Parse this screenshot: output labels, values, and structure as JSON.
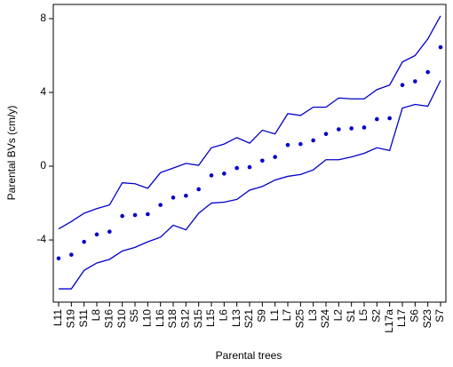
{
  "chart_data": {
    "type": "line",
    "x_label": "Parental trees",
    "y_label": "Parental BVs (cm/y)",
    "categories": [
      "L11",
      "S19",
      "S11",
      "L8",
      "S16",
      "S10",
      "S5",
      "L10",
      "L16",
      "S18",
      "S12",
      "S15",
      "L15",
      "L6",
      "L13",
      "S21",
      "S9",
      "L1",
      "L7",
      "S25",
      "L3",
      "S24",
      "L2",
      "S1",
      "L5",
      "S2",
      "L17a",
      "L17",
      "S6",
      "S23",
      "S7"
    ],
    "series": [
      {
        "color": "#0000cc",
        "mode": "lines",
        "values": [
          -3.4,
          -3.0,
          -2.55,
          -2.3,
          -2.1,
          -0.9,
          -0.95,
          -1.2,
          -0.35,
          -0.1,
          0.15,
          0.05,
          1.0,
          1.2,
          1.55,
          1.25,
          1.95,
          1.75,
          2.85,
          2.75,
          3.2,
          3.2,
          3.7,
          3.65,
          3.65,
          4.15,
          4.4,
          5.65,
          6.0,
          6.9,
          8.15
        ]
      },
      {
        "color": "#0000cc",
        "mode": "markers",
        "values": [
          -5.0,
          -4.8,
          -4.1,
          -3.7,
          -3.55,
          -2.7,
          -2.65,
          -2.6,
          -2.1,
          -1.7,
          -1.6,
          -1.25,
          -0.5,
          -0.4,
          -0.1,
          -0.05,
          0.3,
          0.5,
          1.15,
          1.2,
          1.4,
          1.75,
          2.0,
          2.05,
          2.1,
          2.55,
          2.6,
          4.4,
          4.6,
          5.1,
          6.45
        ]
      },
      {
        "color": "#0000cc",
        "mode": "lines",
        "values": [
          -6.65,
          -6.65,
          -5.65,
          -5.25,
          -5.05,
          -4.6,
          -4.4,
          -4.1,
          -3.85,
          -3.2,
          -3.45,
          -2.55,
          -2.0,
          -1.95,
          -1.8,
          -1.3,
          -1.1,
          -0.75,
          -0.55,
          -0.45,
          -0.2,
          0.35,
          0.35,
          0.5,
          0.7,
          1.0,
          0.85,
          3.15,
          3.35,
          3.25,
          4.65
        ]
      }
    ],
    "ylim": [
      -7.37,
      8.77
    ],
    "yticks": [
      -4,
      0,
      4,
      8
    ]
  }
}
